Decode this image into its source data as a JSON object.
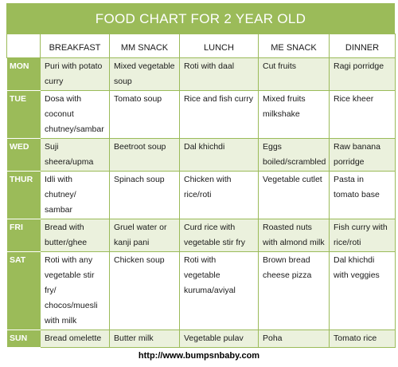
{
  "title": "FOOD CHART FOR 2 YEAR OLD",
  "columns": [
    "BREAKFAST",
    "MM SNACK",
    "LUNCH",
    "ME SNACK",
    "DINNER"
  ],
  "rows": [
    {
      "day": "MON",
      "cells": [
        "Puri with potato curry",
        "Mixed vegetable soup",
        "Roti with daal",
        "Cut fruits",
        "Ragi porridge"
      ]
    },
    {
      "day": "TUE",
      "cells": [
        "Dosa with coconut chutney/sambar",
        "Tomato soup",
        "Rice and fish curry",
        "Mixed fruits milkshake",
        "Rice kheer"
      ]
    },
    {
      "day": "WED",
      "cells": [
        "Suji sheera/upma",
        "Beetroot soup",
        "Dal khichdi",
        "Eggs boiled/scrambled",
        "Raw banana porridge"
      ]
    },
    {
      "day": "THUR",
      "cells": [
        "Idli with chutney/ sambar",
        "Spinach soup",
        "Chicken with rice/roti",
        "Vegetable cutlet",
        "Pasta in tomato base"
      ]
    },
    {
      "day": "FRI",
      "cells": [
        "Bread with butter/ghee",
        "Gruel water or kanji pani",
        "Curd rice with vegetable stir fry",
        "Roasted nuts with almond milk",
        "Fish curry with rice/roti"
      ]
    },
    {
      "day": "SAT",
      "cells": [
        "Roti with any vegetable stir fry/ chocos/muesli with milk",
        "Chicken soup",
        "Roti with vegetable kuruma/aviyal",
        "Brown bread cheese pizza",
        "Dal khichdi with veggies"
      ]
    },
    {
      "day": "SUN",
      "cells": [
        "Bread omelette",
        "Butter milk",
        "Vegetable pulav",
        "Poha",
        "Tomato rice"
      ]
    }
  ],
  "footer_url": "http://www.bumpsnbaby.com",
  "colors": {
    "header_green": "#9bbb59",
    "row_alt": "#ebf1dd",
    "border": "#9bbb59"
  }
}
